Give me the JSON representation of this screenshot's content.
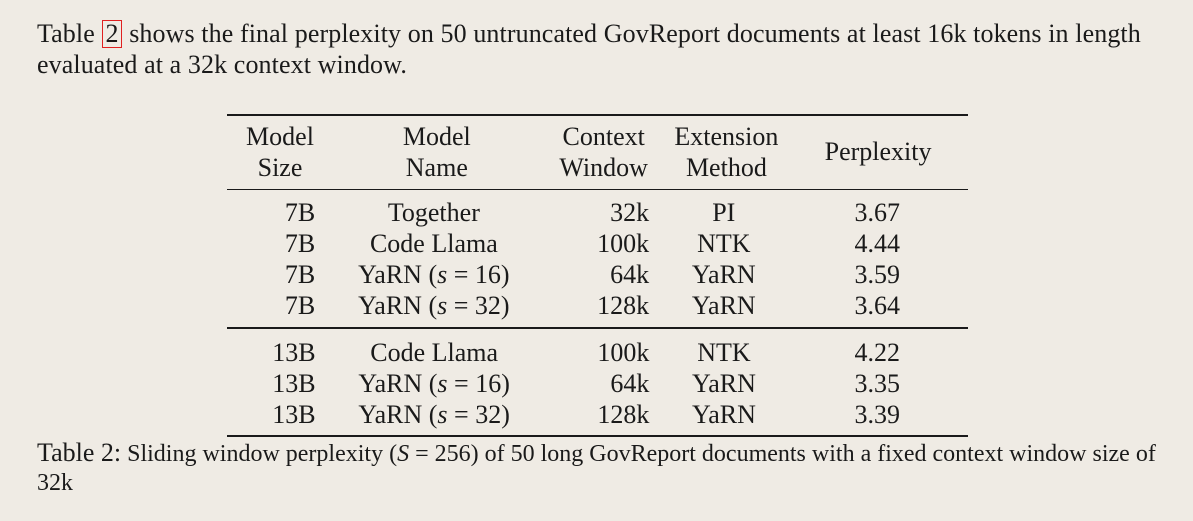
{
  "paragraph": {
    "before_ref": "Table ",
    "ref": "2",
    "after_ref": " shows the final perplexity on 50 untruncated GovReport documents at least 16k tokens in length evaluated at a 32k context window."
  },
  "table": {
    "headers": {
      "size_line1": "Model",
      "size_line2": "Size",
      "name_line1": "Model",
      "name_line2": "Name",
      "ctx_line1": "Context",
      "ctx_line2": "Window",
      "ext_line1": "Extension",
      "ext_line2": "Method",
      "ppl": "Perplexity"
    },
    "group1": [
      {
        "size": "7B",
        "name": "Together",
        "ctx": "32k",
        "ext": "PI",
        "ppl": "3.67"
      },
      {
        "size": "7B",
        "name": "Code Llama",
        "ctx": "100k",
        "ext": "NTK",
        "ppl": "4.44"
      },
      {
        "size": "7B",
        "name_prefix": "YaRN (",
        "name_var": "s",
        "name_suffix": " = 16)",
        "ctx": "64k",
        "ext": "YaRN",
        "ppl": "3.59"
      },
      {
        "size": "7B",
        "name_prefix": "YaRN (",
        "name_var": "s",
        "name_suffix": " = 32)",
        "ctx": "128k",
        "ext": "YaRN",
        "ppl": "3.64"
      }
    ],
    "group2": [
      {
        "size": "13B",
        "name": "Code Llama",
        "ctx": "100k",
        "ext": "NTK",
        "ppl": "4.22"
      },
      {
        "size": "13B",
        "name_prefix": "YaRN (",
        "name_var": "s",
        "name_suffix": " = 16)",
        "ctx": "64k",
        "ext": "YaRN",
        "ppl": "3.35"
      },
      {
        "size": "13B",
        "name_prefix": "YaRN (",
        "name_var": "s",
        "name_suffix": " = 32)",
        "ctx": "128k",
        "ext": "YaRN",
        "ppl": "3.39"
      }
    ]
  },
  "caption": {
    "label": "Table 2:",
    "text_before_var": " Sliding window perplexity (",
    "var": "S",
    "text_after_var": " = 256) of 50 long GovReport documents with a fixed context window size of 32k"
  }
}
